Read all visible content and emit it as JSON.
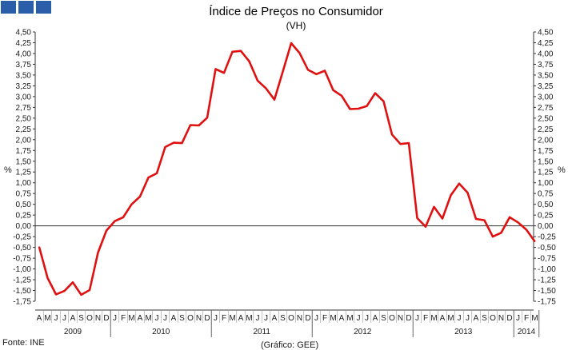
{
  "chart_data": {
    "type": "line",
    "title": "Índice de Preços no Consumidor",
    "subtitle": "(VH)",
    "ylabel_left": "%",
    "ylabel_right": "%",
    "ylim": [
      -1.75,
      4.5
    ],
    "ytick_step": 0.25,
    "grid": false,
    "zero_line": true,
    "line_color": "#e01010",
    "source": "Fonte: INE",
    "credit": "(Gráfico: GEE)",
    "months": [
      "A",
      "M",
      "J",
      "J",
      "A",
      "S",
      "O",
      "N",
      "D",
      "J",
      "F",
      "M",
      "A",
      "M",
      "J",
      "J",
      "A",
      "S",
      "O",
      "N",
      "D",
      "J",
      "F",
      "M",
      "A",
      "M",
      "J",
      "J",
      "A",
      "S",
      "O",
      "N",
      "D",
      "J",
      "F",
      "M",
      "A",
      "M",
      "J",
      "J",
      "A",
      "S",
      "O",
      "N",
      "D",
      "J",
      "F",
      "M",
      "A",
      "M",
      "J",
      "J",
      "A",
      "S",
      "O",
      "N",
      "D",
      "J",
      "F",
      "M"
    ],
    "years": [
      {
        "label": "2009",
        "start": 0,
        "end": 8
      },
      {
        "label": "2010",
        "start": 9,
        "end": 20
      },
      {
        "label": "2011",
        "start": 21,
        "end": 32
      },
      {
        "label": "2012",
        "start": 33,
        "end": 44
      },
      {
        "label": "2013",
        "start": 45,
        "end": 56
      },
      {
        "label": "2014",
        "start": 57,
        "end": 59
      }
    ],
    "values": [
      -0.49,
      -1.21,
      -1.59,
      -1.51,
      -1.31,
      -1.6,
      -1.49,
      -0.62,
      -0.11,
      0.11,
      0.2,
      0.5,
      0.68,
      1.12,
      1.22,
      1.83,
      1.93,
      1.92,
      2.34,
      2.33,
      2.51,
      3.64,
      3.55,
      4.04,
      4.06,
      3.82,
      3.37,
      3.19,
      2.93,
      3.58,
      4.24,
      4.01,
      3.62,
      3.52,
      3.6,
      3.15,
      3.02,
      2.71,
      2.72,
      2.78,
      3.08,
      2.89,
      2.12,
      1.9,
      1.92,
      0.18,
      -0.02,
      0.44,
      0.17,
      0.71,
      0.98,
      0.77,
      0.16,
      0.13,
      -0.25,
      -0.16,
      0.2,
      0.08,
      -0.09,
      -0.36
    ],
    "series": [
      {
        "name": "",
        "values_ref": "values"
      }
    ]
  }
}
